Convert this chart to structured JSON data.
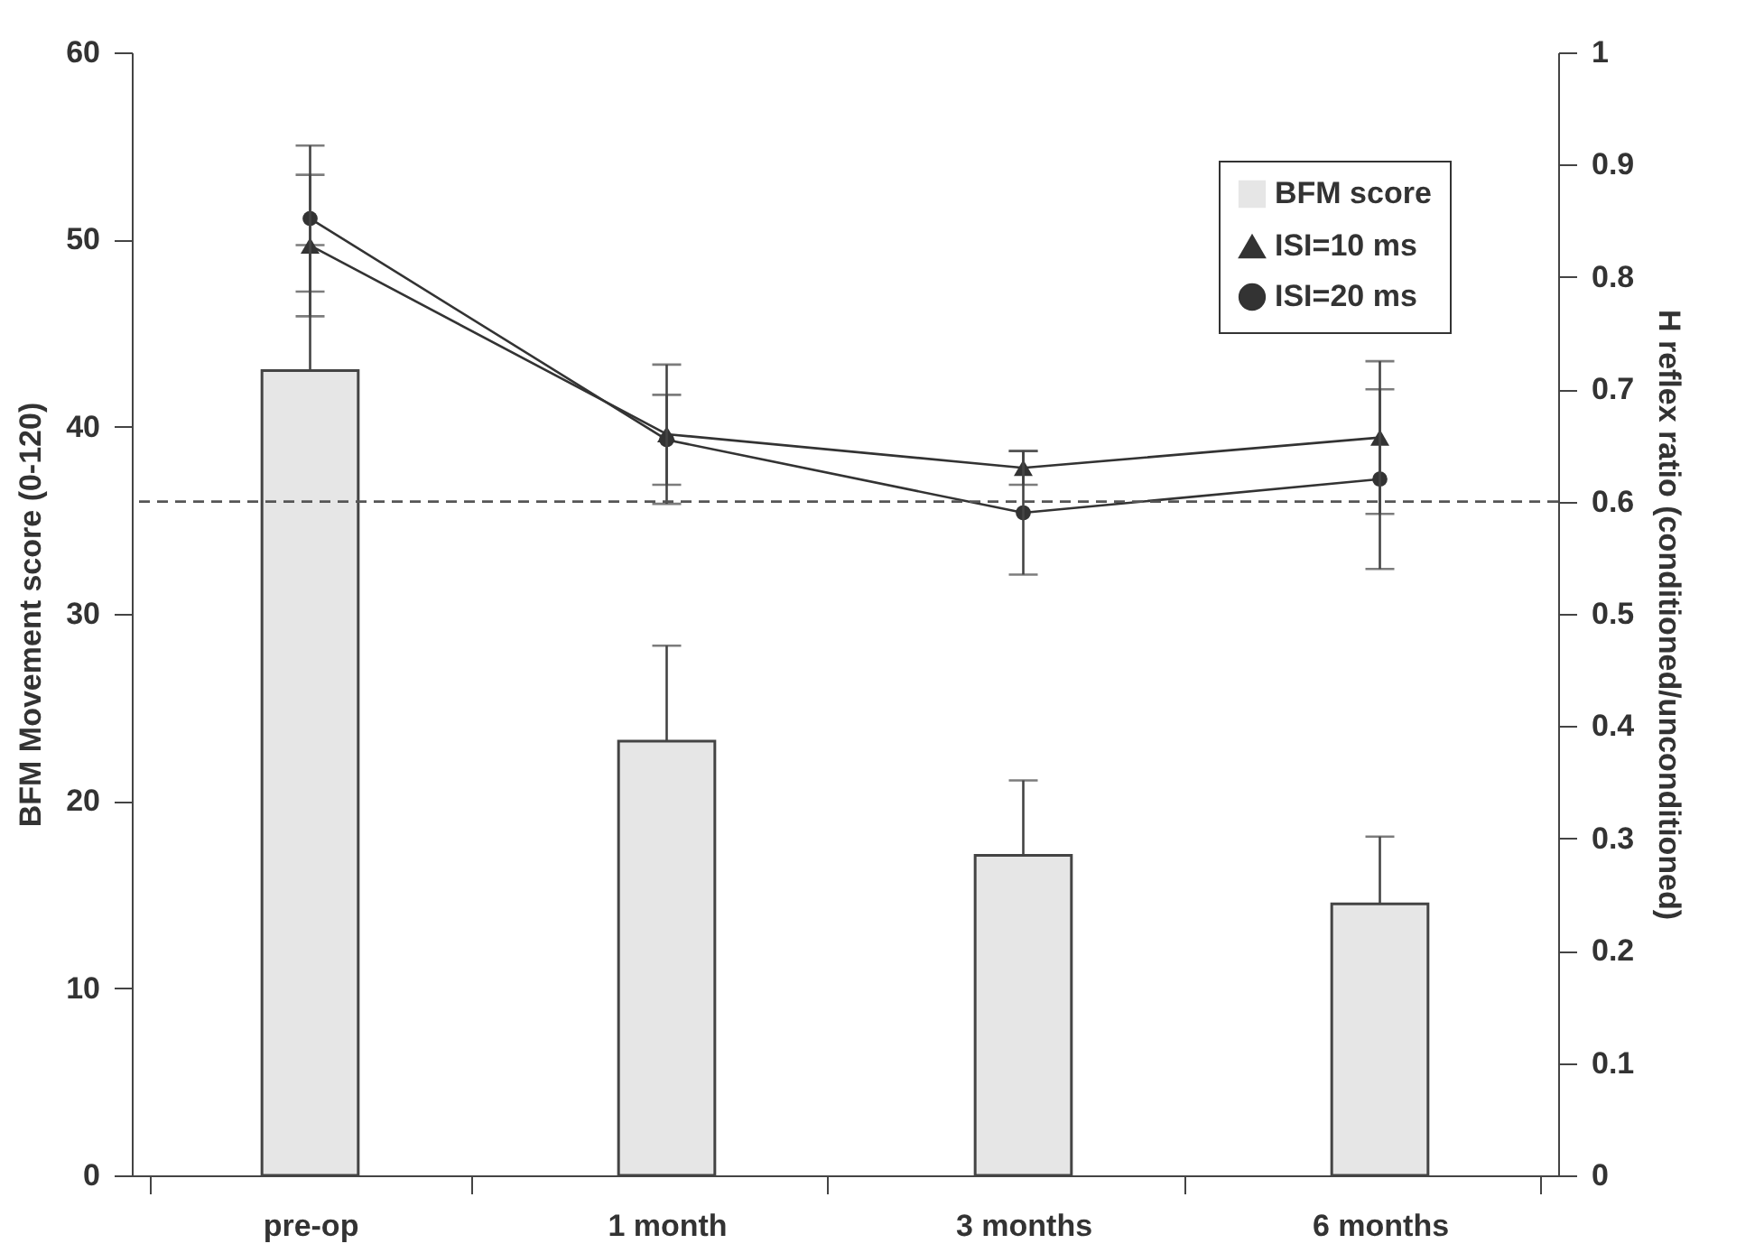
{
  "chart_data": {
    "type": "bar",
    "categories": [
      "pre-op",
      "1 month",
      "3 months",
      "6 months"
    ],
    "ylabel": "BFM Movement score (0-120)",
    "y2label": "H reflex ratio (conditioned/unconditioned)",
    "ylim": [
      0,
      60
    ],
    "yticks": [
      0,
      10,
      20,
      30,
      40,
      50,
      60
    ],
    "y2lim": [
      0,
      1
    ],
    "y2ticks": [
      0,
      0.1,
      0.2,
      0.3,
      0.4,
      0.5,
      0.6,
      0.7,
      0.8,
      0.9,
      1
    ],
    "series": [
      {
        "name": "BFM score",
        "color": "#e6e6e6",
        "values": [
          43,
          23.2,
          17.1,
          14.5
        ],
        "errors": [
          [
            43,
            49.7
          ],
          [
            23.2,
            28.3
          ],
          [
            17.1,
            21.1
          ],
          [
            14.5,
            18.1
          ]
        ]
      },
      {
        "name": "ISI=10 ms",
        "type": "line",
        "axis": "y2",
        "color": "#333333",
        "marker": "triangle",
        "values": [
          0.828,
          0.66,
          0.63,
          0.657
        ],
        "errors": [
          0.063,
          0.062,
          0.015,
          0.068
        ]
      },
      {
        "name": "ISI=20 ms",
        "type": "line",
        "axis": "y2",
        "color": "#333333",
        "marker": "circle",
        "values": [
          0.852,
          0.655,
          0.59,
          0.62
        ],
        "errors": [
          0.065,
          0.04,
          0.055,
          0.08
        ]
      }
    ],
    "ref_lines": [
      {
        "axis": "y2",
        "value": 0.6,
        "line_style": "dashed",
        "color": "#555555"
      }
    ],
    "legend": "top right",
    "grid": false
  }
}
